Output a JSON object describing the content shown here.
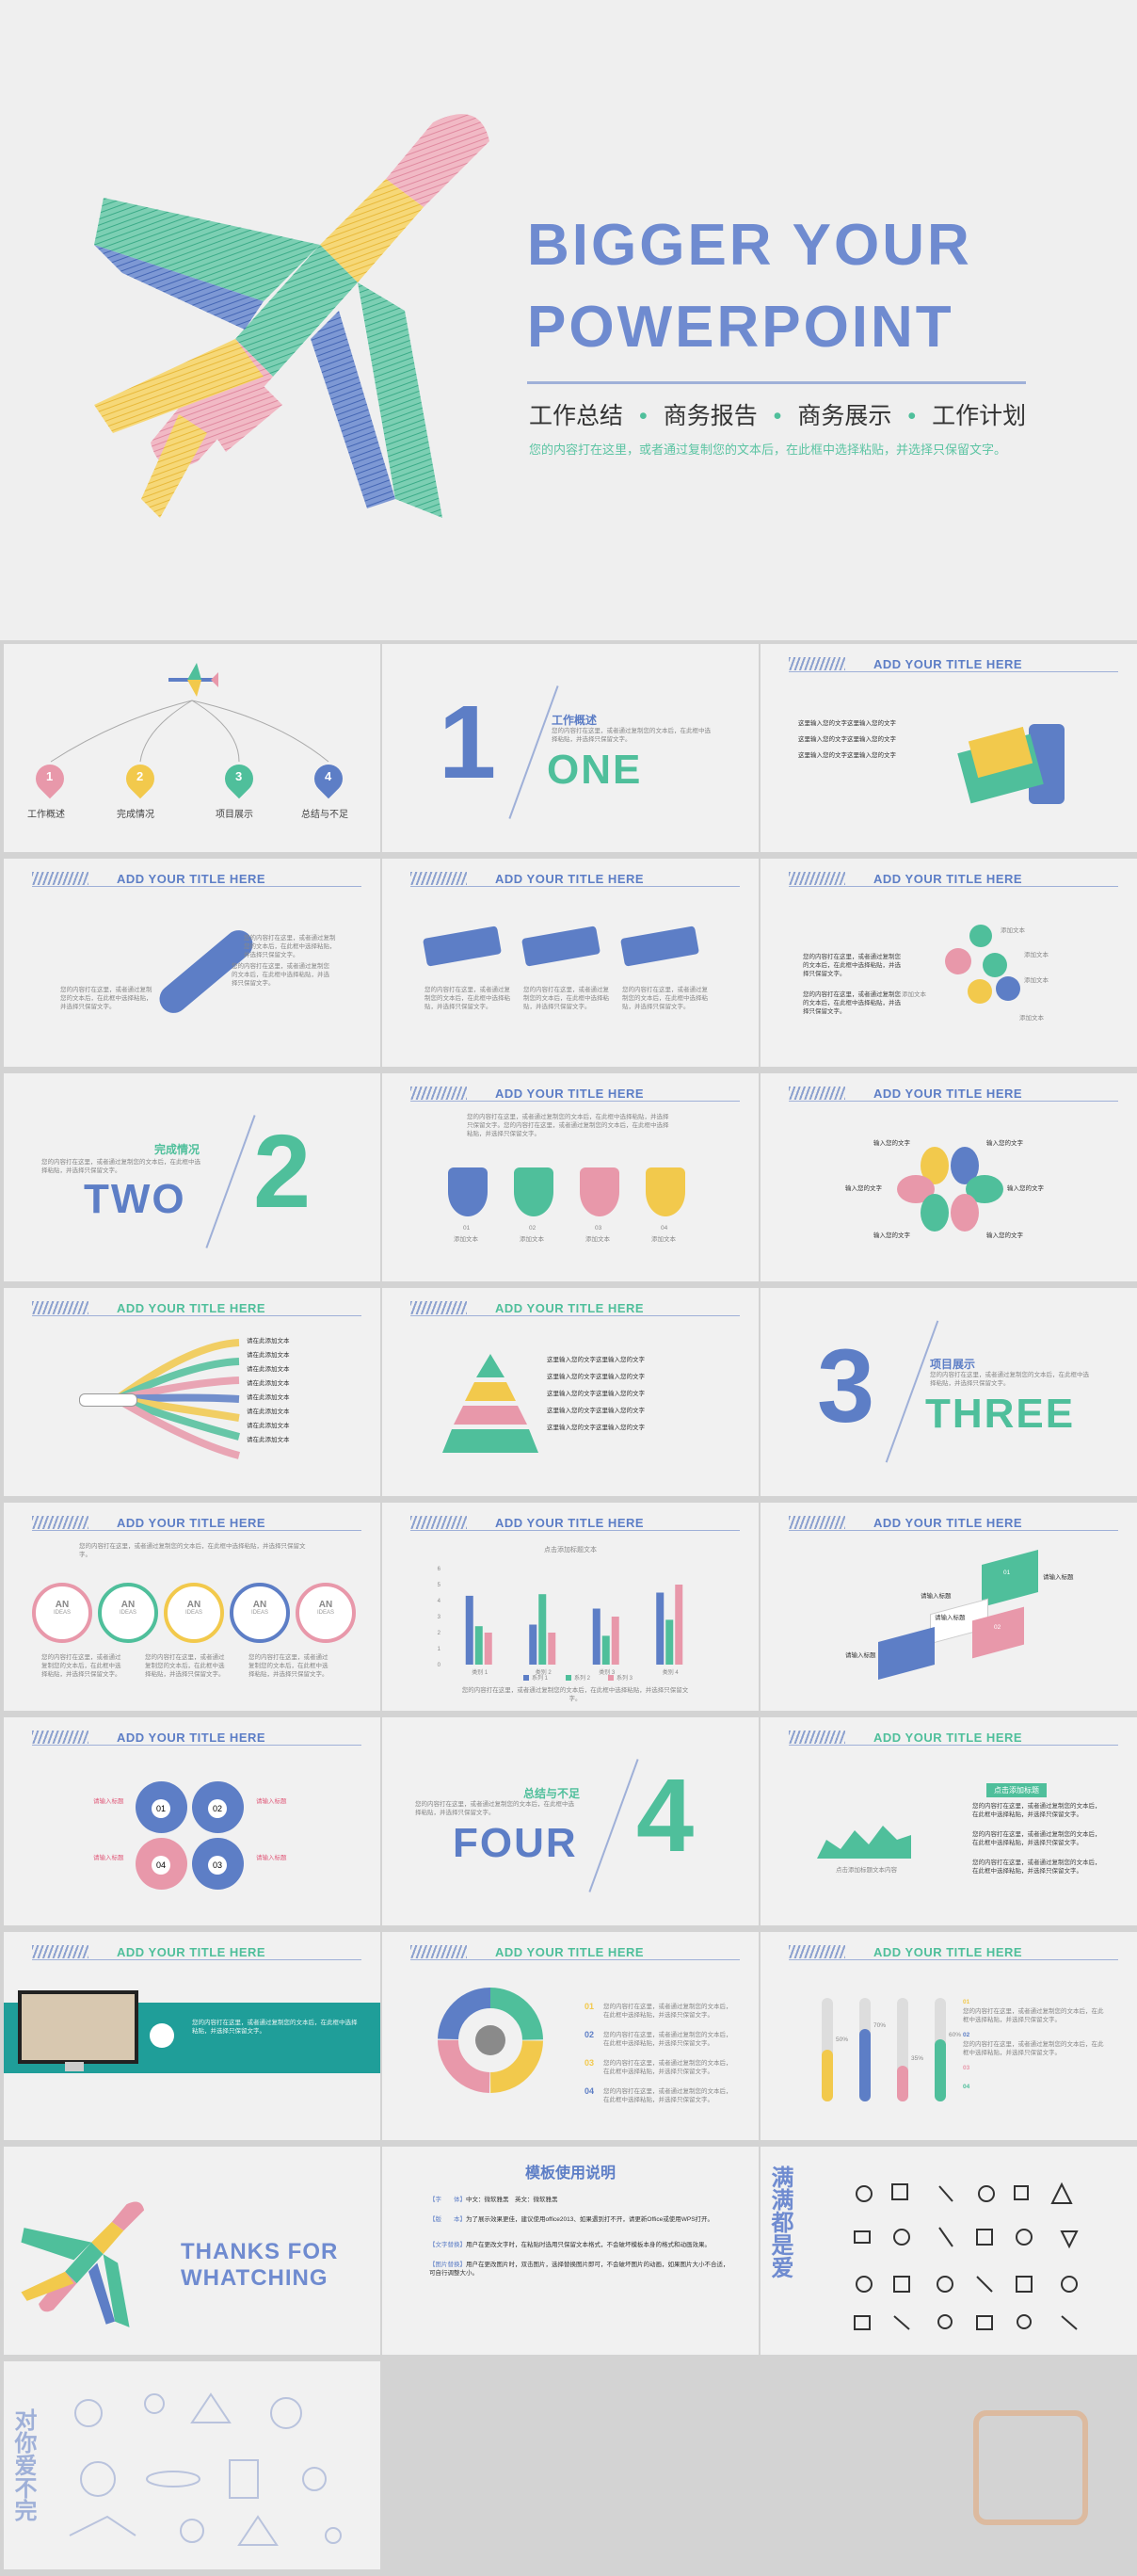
{
  "colors": {
    "blue": "#5d7ec6",
    "teal": "#4fbf9b",
    "yellow": "#f2c94c",
    "pink": "#e898aa",
    "grey": "#9aa3b5"
  },
  "hero": {
    "title_line1": "BIGGER YOUR",
    "title_line2": "POWERPOINT",
    "tags": [
      "工作总结",
      "商务报告",
      "商务展示",
      "工作计划"
    ],
    "subtitle": "您的内容打在这里，或者通过复制您的文本后，在此框中选择粘贴，并选择只保留文字。"
  },
  "section_title": "ADD YOUR TITLE HERE",
  "body_text": "您的内容打在这里，或者通过复制您的文本后，在此框中选择粘贴，并选择只保留文字。",
  "body_text_short": "您的内容打在这里，或者通过复制您的文本后，在此框中选择粘贴，并选择只保留文字。",
  "s1": {
    "labels": [
      "工作概述",
      "完成情况",
      "项目展示",
      "总结与不足"
    ],
    "nums": [
      "1",
      "2",
      "3",
      "4"
    ]
  },
  "s2": {
    "num": "1",
    "word": "ONE",
    "heading": "工作概述",
    "text": "您的内容打在这里，或者通过复制您的文本后，在此框中选择粘贴，并选择只保留文字。"
  },
  "s3": {
    "items": [
      "这里输入您的文字这里输入您的文字",
      "这里输入您的文字这里输入您的文字",
      "这里输入您的文字这里输入您的文字"
    ]
  },
  "s6": {
    "bullets": [
      "您的内容打在这里，或者通过复制您的文本后，在此框中选择粘贴，并选择只保留文字。",
      "您的内容打在这里，或者通过复制您的文本后，在此框中选择粘贴，并选择只保留文字。"
    ],
    "labels": [
      "添加文本",
      "添加文本",
      "添加文本",
      "添加文本",
      "添加文本"
    ]
  },
  "s7": {
    "num": "2",
    "word": "TWO",
    "heading": "完成情况",
    "text": "您的内容打在这里，或者通过复制您的文本后，在此框中选择粘贴，并选择只保留文字。"
  },
  "s8": {
    "nums": [
      "01",
      "02",
      "03",
      "04"
    ],
    "labels": [
      "添加文本",
      "添加文本",
      "添加文本",
      "添加文本"
    ],
    "text": "您的内容打在这里，或者通过复制您的文本后，在此框中选择粘贴，并选择只保留文字。您的内容打在这里，或者通过复制您的文本后，在此框中选择粘贴，并选择只保留文字。"
  },
  "s9": {
    "labels": [
      "输入您的文字",
      "输入您的文字",
      "输入您的文字",
      "输入您的文字",
      "输入您的文字",
      "输入您的文字"
    ]
  },
  "s10": {
    "items": [
      "请在此添加文本",
      "请在此添加文本",
      "请在此添加文本",
      "请在此添加文本",
      "请在此添加文本",
      "请在此添加文本",
      "请在此添加文本",
      "请在此添加文本"
    ]
  },
  "s11": {
    "items": [
      "这里输入您的文字这里输入您的文字",
      "这里输入您的文字这里输入您的文字",
      "这里输入您的文字这里输入您的文字",
      "这里输入您的文字这里输入您的文字",
      "这里输入您的文字这里输入您的文字"
    ]
  },
  "s12": {
    "num": "3",
    "word": "THREE",
    "heading": "项目展示",
    "text": "您的内容打在这里，或者通过复制您的文本后，在此框中选择粘贴，并选择只保留文字。"
  },
  "s13": {
    "text": "您的内容打在这里，或者通过复制您的文本后，在此框中选择粘贴，并选择只保留文字。",
    "circles": [
      "AN",
      "AN",
      "AN",
      "AN",
      "AN"
    ],
    "ring_labels": [
      "IDEAS",
      "IDEAS",
      "IDEAS",
      "IDEAS",
      "IDEAS"
    ]
  },
  "s15": {
    "labels": [
      "请输入标题",
      "请输入标题",
      "请输入标题",
      "请输入标题"
    ],
    "nums": [
      "01",
      "02",
      "03",
      "04"
    ]
  },
  "s16": {
    "labels": [
      "请输入标题",
      "请输入标题",
      "请输入标题",
      "请输入标题"
    ],
    "nums": [
      "01",
      "02",
      "04",
      "03"
    ]
  },
  "s17": {
    "num": "4",
    "word": "FOUR",
    "heading": "总结与不足",
    "text": "您的内容打在这里，或者通过复制您的文本后，在此框中选择粘贴，并选择只保留文字。"
  },
  "s18": {
    "badge": "点击添加标题",
    "caption": "点击添加标题文本内容"
  },
  "s20": {
    "nums": [
      "01",
      "02",
      "03",
      "04"
    ]
  },
  "s21": {
    "values": [
      "50%",
      "70%",
      "35%",
      "60%"
    ],
    "nums": [
      "01",
      "02",
      "03",
      "04"
    ]
  },
  "thanks": {
    "line1": "THANKS FOR",
    "line2": "WHATCHING"
  },
  "usage": {
    "title": "模板使用说明",
    "rows": [
      {
        "key": "【字　　体】",
        "val": "中文：微软雅黑　英文：微软雅黑"
      },
      {
        "key": "【版　　本】",
        "val": "为了展示效果更佳，建议使用office2013、如果遇到打不开，请更新Office或使用WPS打开。"
      },
      {
        "key": "【文字替换】",
        "val": "用户在更改文字时，在粘贴时选用只保留文本格式，不会破坏模板本身的格式和动画效果。"
      },
      {
        "key": "【图片替换】",
        "val": "用户在更改图片时，双击图片，选择替换图片即可，不会破坏图片的动画，如果图片大小不合适，可自行调整大小。"
      }
    ]
  },
  "vertical1": "满满都是爱",
  "vertical2": "对你爱不完",
  "chart_data": {
    "type": "bar",
    "title": "点击添加标题文本",
    "categories": [
      "类别 1",
      "类别 2",
      "类别 3",
      "类别 4"
    ],
    "series": [
      {
        "name": "系列 1",
        "values": [
          4.3,
          2.5,
          3.5,
          4.5
        ]
      },
      {
        "name": "系列 2",
        "values": [
          2.4,
          4.4,
          1.8,
          2.8
        ]
      },
      {
        "name": "系列 3",
        "values": [
          2,
          2,
          3,
          5
        ]
      }
    ],
    "ylim": [
      0,
      6
    ],
    "legend": "bottom"
  }
}
